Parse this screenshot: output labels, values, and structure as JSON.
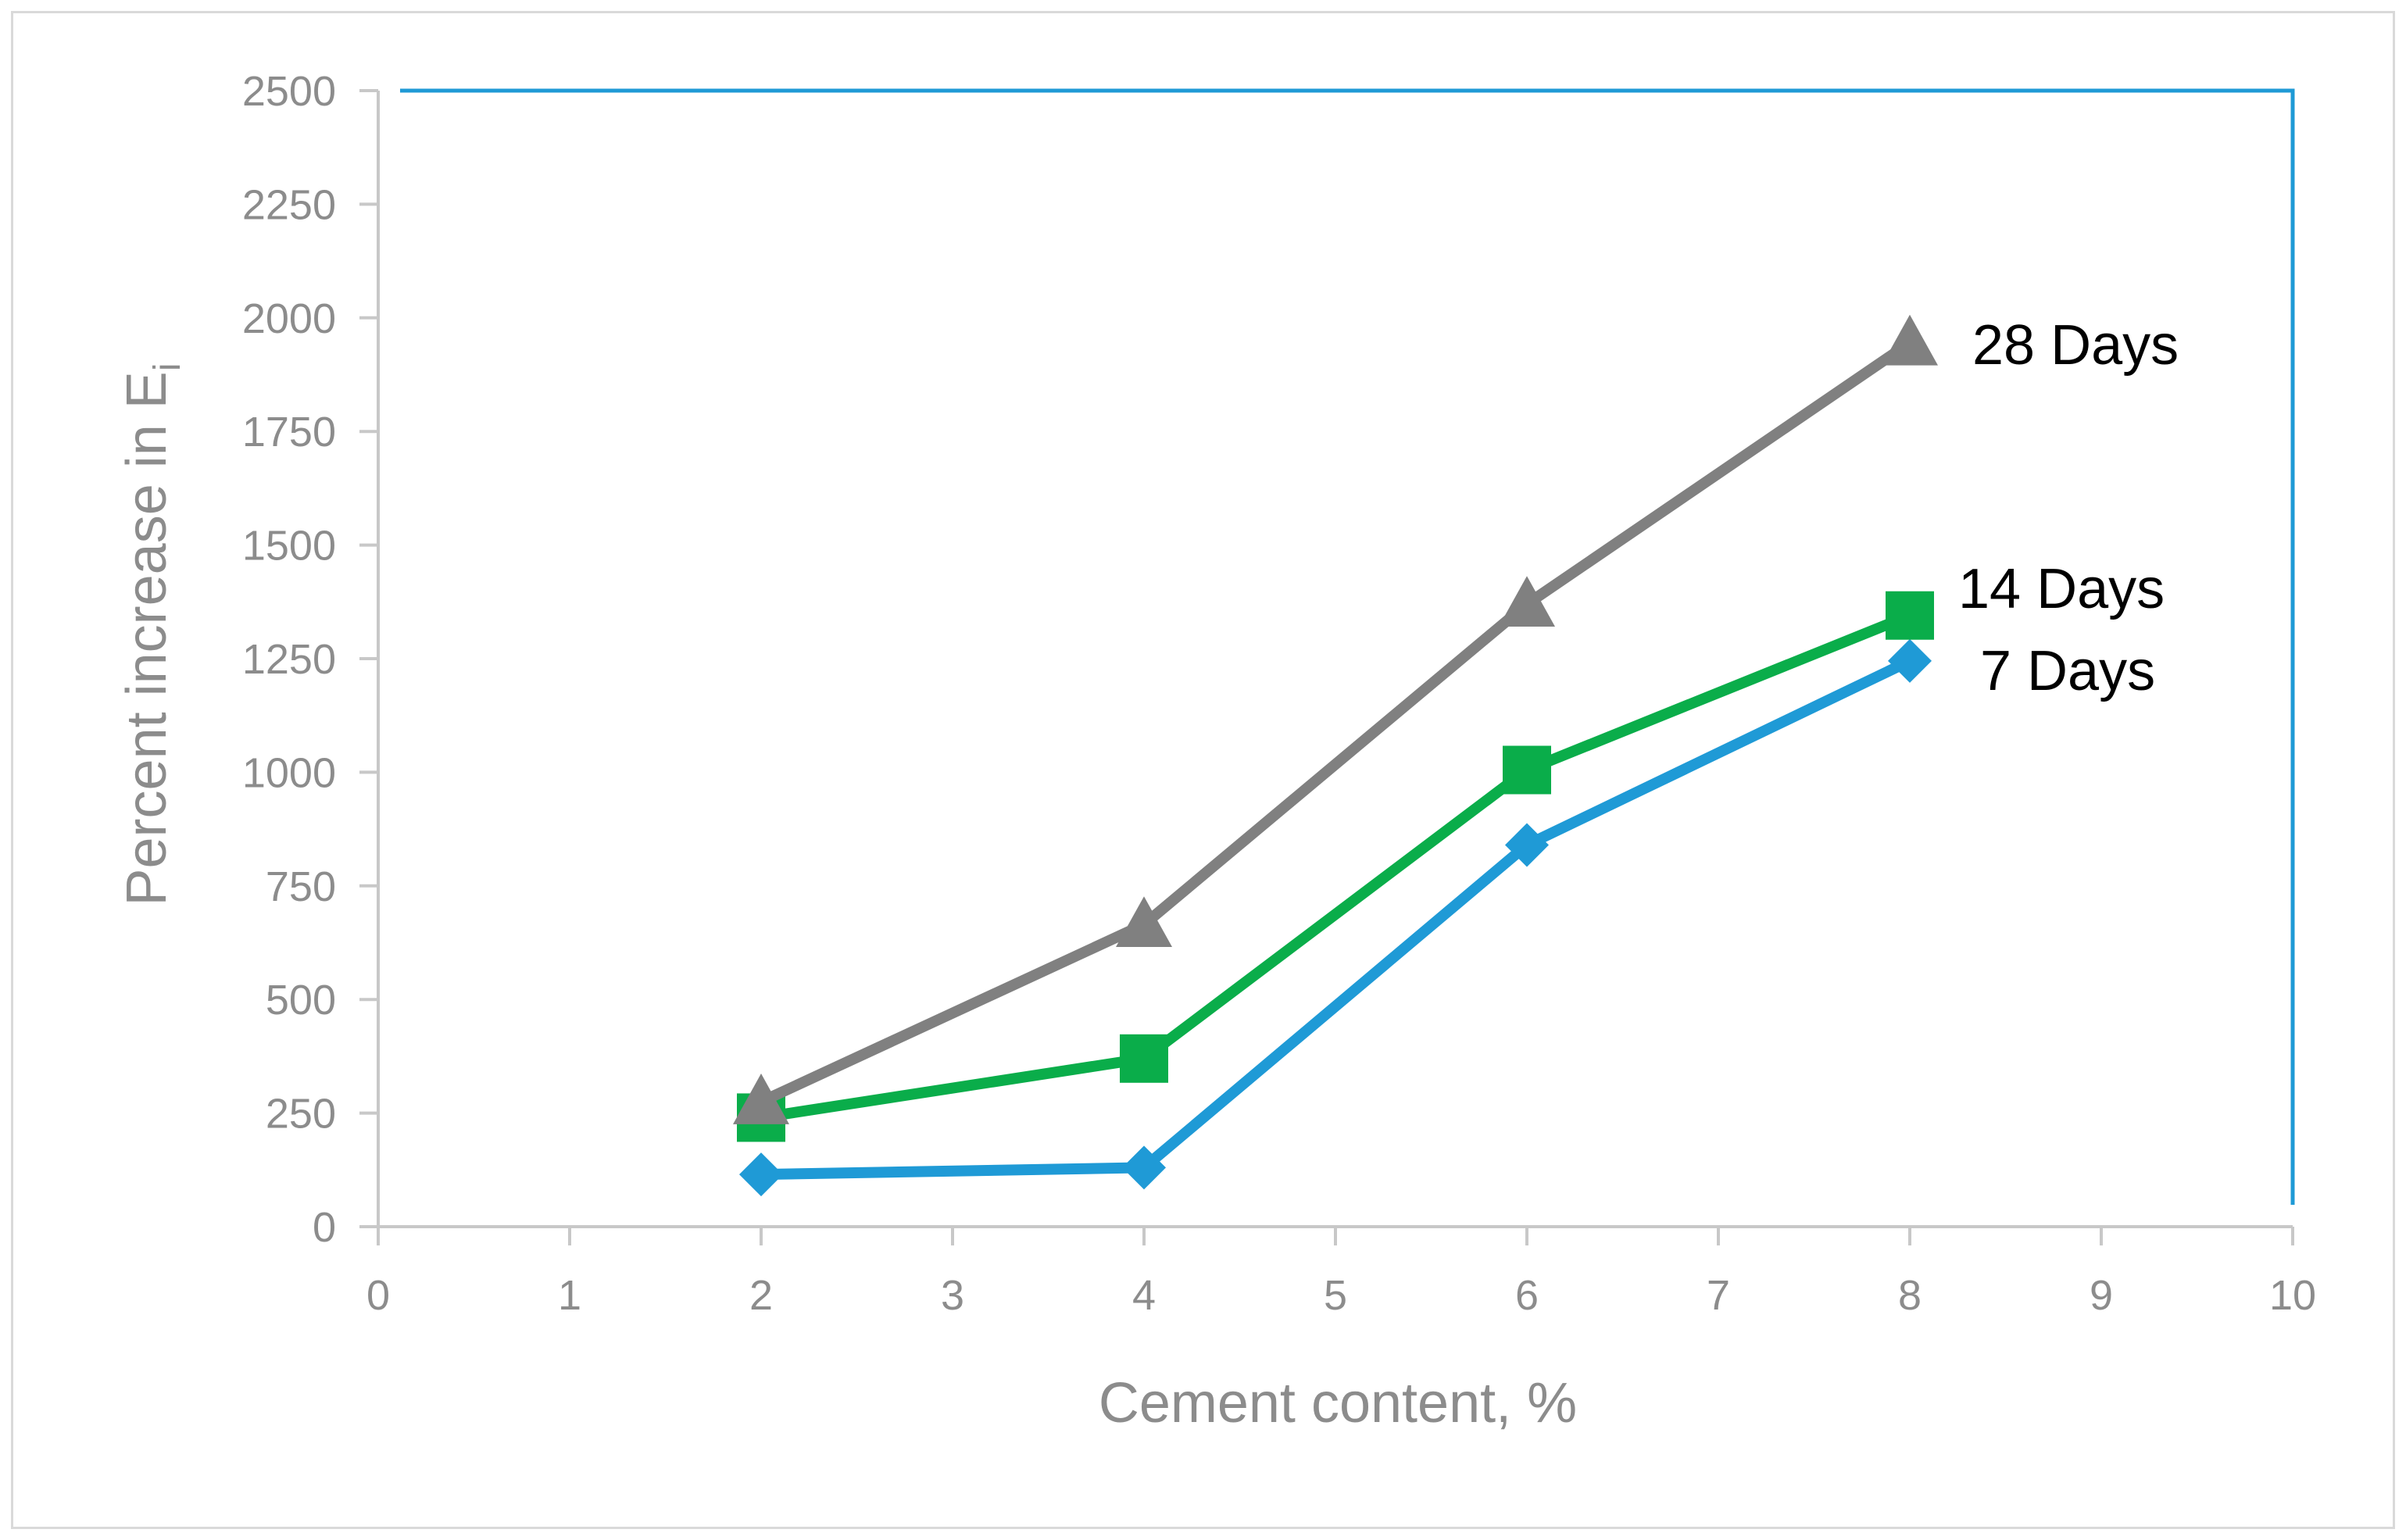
{
  "chart_data": {
    "type": "line",
    "title": "",
    "xlabel": "Cement content, %",
    "ylabel": "Percent increase in E",
    "ylabel_subscript": "i",
    "xlim": [
      0,
      10
    ],
    "ylim": [
      0,
      2500
    ],
    "x_ticks": [
      "0",
      "1",
      "2",
      "3",
      "4",
      "5",
      "6",
      "7",
      "8",
      "9",
      "10"
    ],
    "y_ticks": [
      "0",
      "250",
      "500",
      "750",
      "1000",
      "1250",
      "1500",
      "1750",
      "2000",
      "2250",
      "2500"
    ],
    "grid": false,
    "legend": "none (series labelled directly at line ends)",
    "frame_color": "#1f9ad6",
    "axis_color": "#c8c8c8",
    "series": [
      {
        "name": "7 Days",
        "color": "#1f9ad6",
        "marker": "diamond",
        "x": [
          2,
          4,
          6,
          8
        ],
        "values": [
          115,
          130,
          840,
          1245
        ]
      },
      {
        "name": "14 Days",
        "color": "#0aad4a",
        "marker": "square",
        "x": [
          2,
          4,
          6,
          8
        ],
        "values": [
          240,
          370,
          1005,
          1345
        ]
      },
      {
        "name": "28 Days",
        "color": "#808080",
        "marker": "triangle",
        "x": [
          2,
          4,
          6,
          8
        ],
        "values": [
          275,
          665,
          1370,
          1945
        ]
      }
    ]
  }
}
